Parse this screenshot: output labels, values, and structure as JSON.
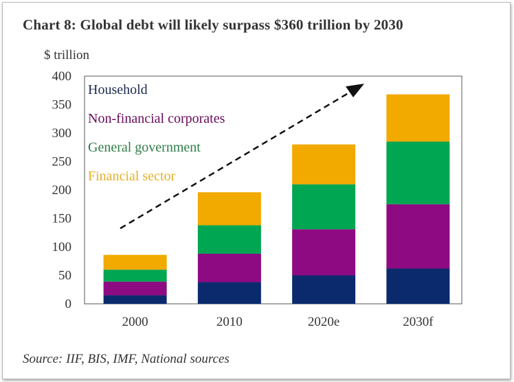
{
  "chart_data": {
    "type": "bar",
    "stacked": true,
    "title": "Chart 8:  Global debt will likely surpass $360 trillion by 2030",
    "ylabel": "$ trillion",
    "xlabel": "",
    "ylim": [
      0,
      400
    ],
    "yticks": [
      0,
      50,
      100,
      150,
      200,
      250,
      300,
      350,
      400
    ],
    "categories": [
      "2000",
      "2010",
      "2020e",
      "2030f"
    ],
    "series": [
      {
        "name": "Household",
        "color": "#0b2a6e",
        "label_color": "#1c2a52",
        "values": [
          15,
          38,
          50,
          62
        ]
      },
      {
        "name": "Non-financial corporates",
        "color": "#8e0a82",
        "label_color": "#6a0a5c",
        "values": [
          24,
          50,
          81,
          113
        ]
      },
      {
        "name": "General government",
        "color": "#00a651",
        "label_color": "#2f7d48",
        "values": [
          21,
          50,
          79,
          110
        ]
      },
      {
        "name": "Financial sector",
        "color": "#f2a900",
        "label_color": "#e6b128",
        "values": [
          26,
          58,
          70,
          83
        ]
      }
    ],
    "legend_position": "top-left",
    "annotation": "dashed upward trend arrow",
    "grid": false,
    "source": "Source: IIF, BIS, IMF, National sources"
  }
}
